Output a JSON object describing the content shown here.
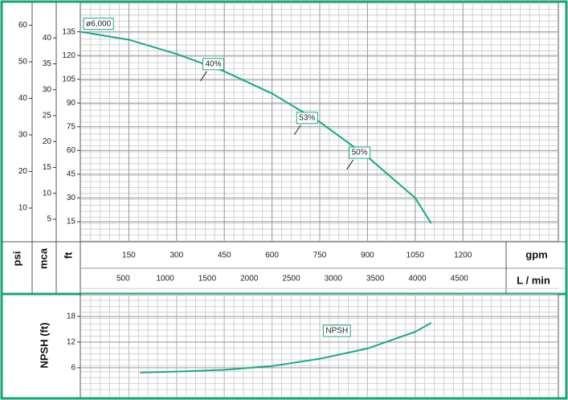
{
  "chart_data": [
    {
      "type": "line",
      "x_label": "gpm",
      "xlim": [
        0,
        1500
      ],
      "xticks": [
        150,
        300,
        450,
        600,
        750,
        900,
        1050,
        1200
      ],
      "x2_label": "L / min",
      "x2lim": [
        0,
        5678
      ],
      "x2ticks": [
        500,
        1000,
        1500,
        2000,
        2500,
        3000,
        3500,
        4000,
        4500
      ],
      "y_label": "ft",
      "ylim": [
        2.8,
        147.5
      ],
      "yticks": [
        15,
        30,
        45,
        60,
        75,
        90,
        105,
        120,
        135
      ],
      "y2_label": "mca",
      "y2lim": [
        0.8,
        45
      ],
      "y2ticks": [
        5,
        10,
        15,
        20,
        25,
        30,
        35,
        40
      ],
      "y3_label": "psi",
      "y3lim": [
        1.0,
        63.6
      ],
      "y3ticks": [
        10,
        20,
        30,
        40,
        50,
        60
      ],
      "grid": true,
      "series": [
        {
          "name": "ø6,000",
          "color": "#19a88c",
          "x": [
            0,
            150,
            300,
            450,
            600,
            750,
            900,
            1050,
            1100
          ],
          "values": [
            135,
            130,
            121,
            110,
            96,
            78,
            56,
            30,
            14
          ]
        }
      ],
      "annotations": [
        {
          "text": "40%",
          "x": 385,
          "y": 107
        },
        {
          "text": "53%",
          "x": 680,
          "y": 73
        },
        {
          "text": "50%",
          "x": 845,
          "y": 51
        }
      ]
    },
    {
      "type": "line",
      "y_label": "NPSH (ft)",
      "xlim": [
        0,
        1500
      ],
      "ylim": [
        0.9,
        22.5
      ],
      "yticks": [
        6,
        12,
        18
      ],
      "grid": true,
      "series": [
        {
          "name": "NPSH",
          "color": "#19a88c",
          "x": [
            185,
            300,
            450,
            600,
            750,
            900,
            1050,
            1100
          ],
          "values": [
            4.9,
            5.1,
            5.5,
            6.4,
            8.1,
            10.5,
            14.4,
            16.5
          ]
        }
      ]
    }
  ]
}
